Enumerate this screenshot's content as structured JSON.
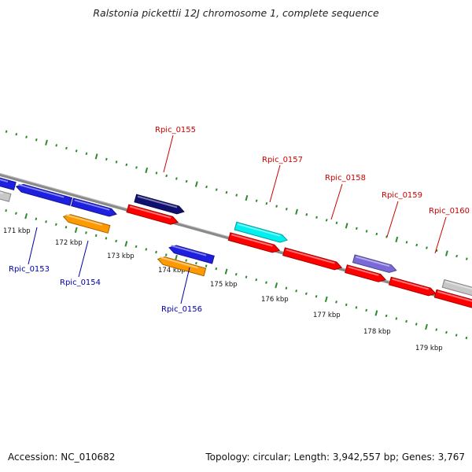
{
  "title": "Ralstonia pickettii 12J chromosome 1, complete sequence",
  "footer": {
    "accession": "Accession: NC_010682",
    "info": "Topology: circular; Length: 3,942,557 bp; Genes: 3,767"
  },
  "colors": {
    "backbone": "#8a8a8a",
    "tick": "#2d8a2d",
    "label_red": "#cc0000",
    "label_blue": "#0000aa",
    "gene_red": "#ff0000",
    "gene_blue": "#1f1fe0",
    "gene_orange": "#ff9900",
    "gene_navy": "#101070",
    "gene_cyan": "#00f0f0",
    "gene_purple": "#7a6ad8",
    "gene_grey": "#c8c8c8"
  },
  "kbp_labels": [
    "171 kbp",
    "172 kbp",
    "173 kbp",
    "174 kbp",
    "175 kbp",
    "176 kbp",
    "177 kbp",
    "178 kbp",
    "179 kbp"
  ],
  "genes": [
    {
      "id": "g-left-blue-a",
      "color": "gene_blue",
      "strand": "minus"
    },
    {
      "id": "g-left-grey",
      "color": "gene_grey",
      "strand": "minus"
    },
    {
      "id": "Rpic_0153",
      "color": "gene_blue",
      "strand": "minus",
      "label": "Rpic_0153"
    },
    {
      "id": "Rpic_0154",
      "color": "gene_orange",
      "strand": "minus",
      "label": "Rpic_0154"
    },
    {
      "id": "g-blue-b",
      "color": "gene_blue",
      "strand": "plus"
    },
    {
      "id": "Rpic_0155",
      "color": "gene_navy",
      "strand": "plus",
      "label": "Rpic_0155"
    },
    {
      "id": "g-red-a",
      "color": "gene_red",
      "strand": "plus"
    },
    {
      "id": "Rpic_0156",
      "color": "gene_blue",
      "strand": "minus",
      "label": "Rpic_0156"
    },
    {
      "id": "g-orange-b",
      "color": "gene_orange",
      "strand": "minus"
    },
    {
      "id": "Rpic_0157",
      "color": "gene_cyan",
      "strand": "plus",
      "label": "Rpic_0157"
    },
    {
      "id": "g-red-b",
      "color": "gene_red",
      "strand": "plus"
    },
    {
      "id": "Rpic_0158",
      "color": "gene_red",
      "strand": "plus",
      "label": "Rpic_0158"
    },
    {
      "id": "Rpic_0159",
      "color": "gene_purple",
      "strand": "plus",
      "label": "Rpic_0159"
    },
    {
      "id": "g-red-c",
      "color": "gene_red",
      "strand": "plus"
    },
    {
      "id": "Rpic_0160",
      "color": "gene_red",
      "strand": "plus",
      "label": "Rpic_0160"
    },
    {
      "id": "g-grey-right",
      "color": "gene_grey",
      "strand": "plus"
    },
    {
      "id": "g-red-right",
      "color": "gene_red",
      "strand": "plus"
    }
  ]
}
